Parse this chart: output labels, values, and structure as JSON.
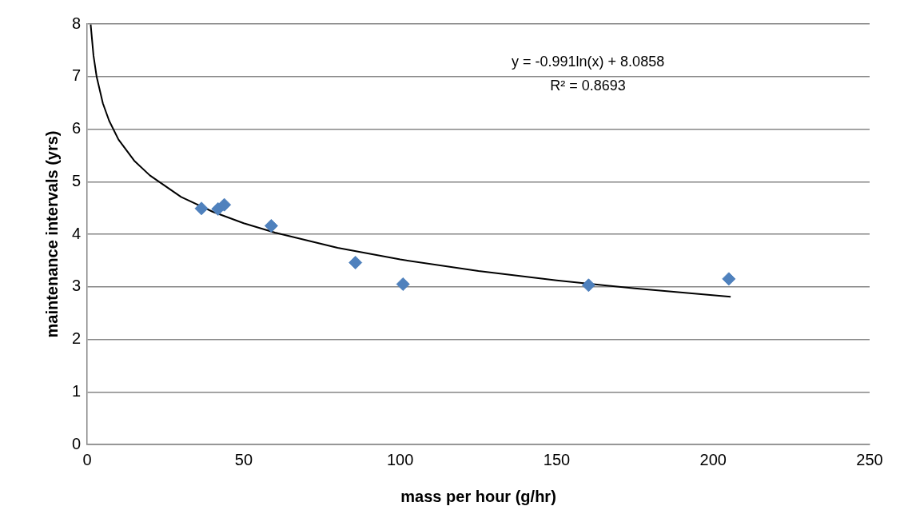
{
  "chart_data": {
    "type": "scatter",
    "xlabel": "mass per hour (g/hr)",
    "ylabel": "maintenance intervals (yrs)",
    "xlim": [
      0,
      250
    ],
    "xticks": [
      0,
      50,
      100,
      150,
      200,
      250
    ],
    "ylim": [
      0,
      8
    ],
    "yticks": [
      0,
      1,
      2,
      3,
      4,
      5,
      6,
      7,
      8
    ],
    "grid": "y",
    "legend": false,
    "annotations": [
      "y = -0.991ln(x) + 8.0858",
      "R² = 0.8693"
    ],
    "series": [
      {
        "marker": "diamond",
        "color": "#4f81bd",
        "x": [
          36.5,
          41.8,
          43.8,
          58.8,
          85.7,
          100.9,
          160.2,
          205
        ],
        "values": [
          4.49,
          4.48,
          4.56,
          4.16,
          3.46,
          3.05,
          3.03,
          3.15
        ]
      },
      {
        "type": "line",
        "marker": "none",
        "line_style": "solid",
        "color": "#000000",
        "x": [
          1.1,
          2,
          3,
          5,
          7,
          10,
          15,
          20,
          30,
          40,
          50,
          60,
          80,
          100,
          125,
          150,
          175,
          205.6
        ],
        "values": [
          7.99,
          7.4,
          7.0,
          6.49,
          6.16,
          5.8,
          5.4,
          5.12,
          4.71,
          4.43,
          4.21,
          4.03,
          3.74,
          3.52,
          3.3,
          3.12,
          2.97,
          2.81
        ]
      }
    ]
  }
}
